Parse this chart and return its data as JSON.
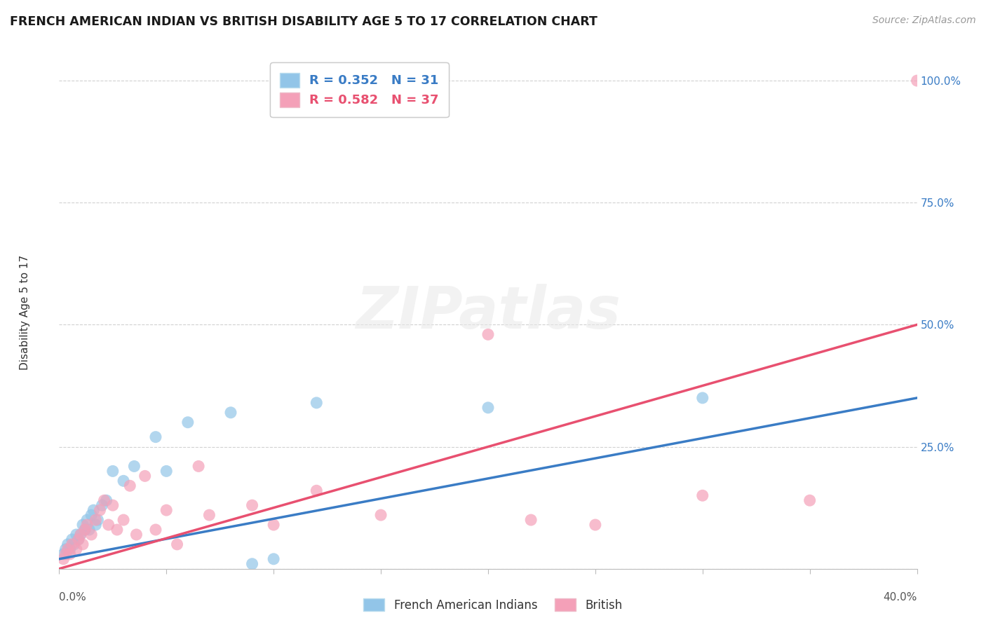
{
  "title": "FRENCH AMERICAN INDIAN VS BRITISH DISABILITY AGE 5 TO 17 CORRELATION CHART",
  "source": "Source: ZipAtlas.com",
  "ylabel": "Disability Age 5 to 17",
  "legend_blue_r": "R = 0.352",
  "legend_blue_n": "N = 31",
  "legend_pink_r": "R = 0.582",
  "legend_pink_n": "N = 37",
  "blue_color": "#92C5E8",
  "pink_color": "#F4A0B8",
  "blue_line_color": "#3A7CC5",
  "pink_line_color": "#E85070",
  "blue_label": "French American Indians",
  "pink_label": "British",
  "watermark": "ZIPatlas",
  "xlim": [
    0,
    40
  ],
  "ylim": [
    0,
    105
  ],
  "blue_x": [
    0.2,
    0.3,
    0.4,
    0.5,
    0.6,
    0.7,
    0.8,
    0.9,
    1.0,
    1.1,
    1.2,
    1.3,
    1.4,
    1.5,
    1.6,
    1.7,
    1.8,
    2.0,
    2.2,
    2.5,
    3.0,
    3.5,
    4.5,
    5.0,
    6.0,
    8.0,
    9.0,
    10.0,
    12.0,
    20.0,
    30.0
  ],
  "blue_y": [
    3,
    4,
    5,
    4,
    6,
    5,
    7,
    6,
    7,
    9,
    8,
    10,
    8,
    11,
    12,
    9,
    10,
    13,
    14,
    20,
    18,
    21,
    27,
    20,
    30,
    32,
    1,
    2,
    34,
    33,
    35
  ],
  "pink_x": [
    0.2,
    0.3,
    0.4,
    0.5,
    0.6,
    0.8,
    0.9,
    1.0,
    1.1,
    1.2,
    1.3,
    1.5,
    1.7,
    1.9,
    2.1,
    2.3,
    2.5,
    2.7,
    3.0,
    3.3,
    3.6,
    4.0,
    4.5,
    5.0,
    5.5,
    6.5,
    7.0,
    9.0,
    10.0,
    12.0,
    15.0,
    20.0,
    22.0,
    25.0,
    30.0,
    35.0,
    40.0
  ],
  "pink_y": [
    2,
    3,
    4,
    3,
    5,
    4,
    6,
    7,
    5,
    8,
    9,
    7,
    10,
    12,
    14,
    9,
    13,
    8,
    10,
    17,
    7,
    19,
    8,
    12,
    5,
    21,
    11,
    13,
    9,
    16,
    11,
    48,
    10,
    9,
    15,
    14,
    100
  ],
  "blue_line_x0": 0,
  "blue_line_y0": 2,
  "blue_line_x1": 40,
  "blue_line_y1": 35,
  "pink_line_x0": 0,
  "pink_line_y0": 0,
  "pink_line_x1": 40,
  "pink_line_y1": 50
}
